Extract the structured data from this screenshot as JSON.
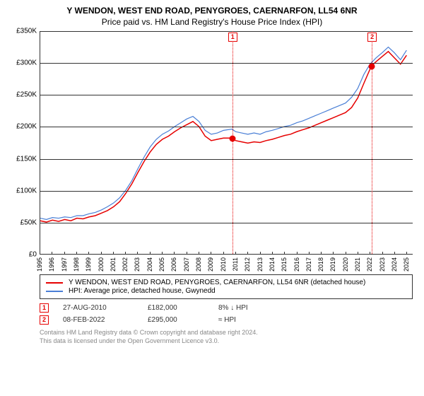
{
  "title_line1": "Y WENDON, WEST END ROAD, PENYGROES, CAERNARFON, LL54 6NR",
  "title_line2": "Price paid vs. HM Land Registry's House Price Index (HPI)",
  "chart": {
    "type": "line",
    "background_color": "#ffffff",
    "axis_color": "#333333",
    "xlim": [
      1995,
      2025.5
    ],
    "ylim": [
      0,
      350
    ],
    "yticks": [
      0,
      50,
      100,
      150,
      200,
      250,
      300,
      350
    ],
    "ytick_labels": [
      "£0",
      "£50K",
      "£100K",
      "£150K",
      "£200K",
      "£250K",
      "£300K",
      "£350K"
    ],
    "xticks": [
      1995,
      1996,
      1997,
      1998,
      1999,
      2000,
      2001,
      2002,
      2003,
      2004,
      2005,
      2006,
      2007,
      2008,
      2009,
      2010,
      2011,
      2012,
      2013,
      2014,
      2015,
      2016,
      2017,
      2018,
      2019,
      2020,
      2021,
      2022,
      2023,
      2024,
      2025
    ],
    "tick_fontsize": 10,
    "series": [
      {
        "name": "property",
        "label": "Y WENDON, WEST END ROAD, PENYGROES, CAERNARFON, LL54 6NR (detached house)",
        "color": "#e60000",
        "line_width": 1.5,
        "points": [
          [
            1995,
            52
          ],
          [
            1995.5,
            50
          ],
          [
            1996,
            53
          ],
          [
            1996.5,
            51
          ],
          [
            1997,
            54
          ],
          [
            1997.5,
            52
          ],
          [
            1998,
            56
          ],
          [
            1998.5,
            55
          ],
          [
            1999,
            58
          ],
          [
            1999.5,
            60
          ],
          [
            2000,
            64
          ],
          [
            2000.5,
            68
          ],
          [
            2001,
            74
          ],
          [
            2001.5,
            82
          ],
          [
            2002,
            95
          ],
          [
            2002.5,
            110
          ],
          [
            2003,
            128
          ],
          [
            2003.5,
            145
          ],
          [
            2004,
            160
          ],
          [
            2004.5,
            172
          ],
          [
            2005,
            180
          ],
          [
            2005.5,
            185
          ],
          [
            2006,
            192
          ],
          [
            2006.5,
            198
          ],
          [
            2007,
            203
          ],
          [
            2007.5,
            208
          ],
          [
            2008,
            200
          ],
          [
            2008.5,
            185
          ],
          [
            2009,
            178
          ],
          [
            2009.5,
            180
          ],
          [
            2010,
            182
          ],
          [
            2010.7,
            182
          ],
          [
            2011,
            178
          ],
          [
            2011.5,
            176
          ],
          [
            2012,
            174
          ],
          [
            2012.5,
            176
          ],
          [
            2013,
            175
          ],
          [
            2013.5,
            178
          ],
          [
            2014,
            180
          ],
          [
            2014.5,
            183
          ],
          [
            2015,
            186
          ],
          [
            2015.5,
            188
          ],
          [
            2016,
            192
          ],
          [
            2016.5,
            195
          ],
          [
            2017,
            198
          ],
          [
            2017.5,
            202
          ],
          [
            2018,
            206
          ],
          [
            2018.5,
            210
          ],
          [
            2019,
            214
          ],
          [
            2019.5,
            218
          ],
          [
            2020,
            222
          ],
          [
            2020.5,
            230
          ],
          [
            2021,
            245
          ],
          [
            2021.5,
            268
          ],
          [
            2022,
            290
          ],
          [
            2022.1,
            295
          ],
          [
            2022.5,
            302
          ],
          [
            2023,
            310
          ],
          [
            2023.5,
            318
          ],
          [
            2024,
            308
          ],
          [
            2024.5,
            298
          ],
          [
            2025,
            312
          ]
        ]
      },
      {
        "name": "hpi",
        "label": "HPI: Average price, detached house, Gwynedd",
        "color": "#4a7fd6",
        "line_width": 1.2,
        "points": [
          [
            1995,
            56
          ],
          [
            1995.5,
            54
          ],
          [
            1996,
            57
          ],
          [
            1996.5,
            56
          ],
          [
            1997,
            58
          ],
          [
            1997.5,
            57
          ],
          [
            1998,
            60
          ],
          [
            1998.5,
            60
          ],
          [
            1999,
            63
          ],
          [
            1999.5,
            65
          ],
          [
            2000,
            69
          ],
          [
            2000.5,
            74
          ],
          [
            2001,
            80
          ],
          [
            2001.5,
            88
          ],
          [
            2002,
            100
          ],
          [
            2002.5,
            115
          ],
          [
            2003,
            134
          ],
          [
            2003.5,
            152
          ],
          [
            2004,
            168
          ],
          [
            2004.5,
            180
          ],
          [
            2005,
            188
          ],
          [
            2005.5,
            193
          ],
          [
            2006,
            200
          ],
          [
            2006.5,
            206
          ],
          [
            2007,
            212
          ],
          [
            2007.5,
            216
          ],
          [
            2008,
            208
          ],
          [
            2008.5,
            194
          ],
          [
            2009,
            188
          ],
          [
            2009.5,
            190
          ],
          [
            2010,
            194
          ],
          [
            2010.7,
            196
          ],
          [
            2011,
            192
          ],
          [
            2011.5,
            190
          ],
          [
            2012,
            188
          ],
          [
            2012.5,
            190
          ],
          [
            2013,
            188
          ],
          [
            2013.5,
            192
          ],
          [
            2014,
            194
          ],
          [
            2014.5,
            197
          ],
          [
            2015,
            200
          ],
          [
            2015.5,
            202
          ],
          [
            2016,
            206
          ],
          [
            2016.5,
            209
          ],
          [
            2017,
            213
          ],
          [
            2017.5,
            217
          ],
          [
            2018,
            221
          ],
          [
            2018.5,
            225
          ],
          [
            2019,
            229
          ],
          [
            2019.5,
            233
          ],
          [
            2020,
            237
          ],
          [
            2020.5,
            246
          ],
          [
            2021,
            260
          ],
          [
            2021.5,
            282
          ],
          [
            2022,
            298
          ],
          [
            2022.1,
            300
          ],
          [
            2022.5,
            308
          ],
          [
            2023,
            316
          ],
          [
            2023.5,
            325
          ],
          [
            2024,
            316
          ],
          [
            2024.5,
            305
          ],
          [
            2025,
            320
          ]
        ]
      }
    ],
    "markers": [
      {
        "n": "1",
        "x": 2010.7,
        "y": 182,
        "color": "#e60000"
      },
      {
        "n": "2",
        "x": 2022.1,
        "y": 295,
        "color": "#e60000"
      }
    ]
  },
  "legend": {
    "items": [
      {
        "color": "#e60000",
        "label": "Y WENDON, WEST END ROAD, PENYGROES, CAERNARFON, LL54 6NR (detached house)"
      },
      {
        "color": "#4a7fd6",
        "label": "HPI: Average price, detached house, Gwynedd"
      }
    ]
  },
  "records": [
    {
      "n": "1",
      "border": "#e60000",
      "date": "27-AUG-2010",
      "price": "£182,000",
      "pct": "8% ↓ HPI"
    },
    {
      "n": "2",
      "border": "#e60000",
      "date": "08-FEB-2022",
      "price": "£295,000",
      "pct": "≈ HPI"
    }
  ],
  "footer_line1": "Contains HM Land Registry data © Crown copyright and database right 2024.",
  "footer_line2": "This data is licensed under the Open Government Licence v3.0."
}
